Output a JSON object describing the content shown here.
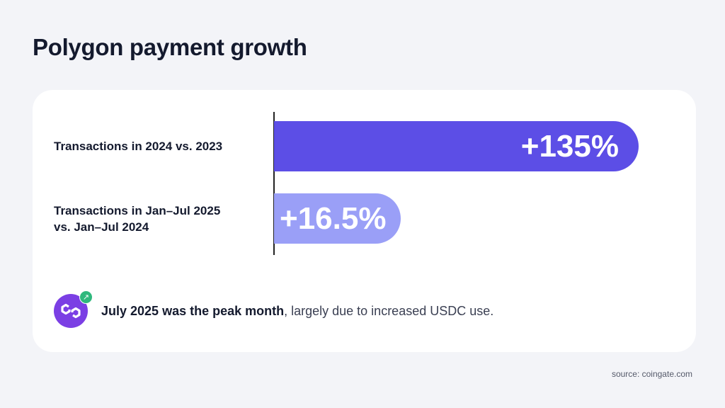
{
  "title": "Polygon payment growth",
  "chart_data": {
    "type": "bar",
    "orientation": "horizontal",
    "categories": [
      "Transactions in 2024 vs. 2023",
      "Transactions in Jan–Jul 2025 vs. Jan–Jul 2024"
    ],
    "category_lines": [
      [
        "Transactions in 2024 vs. 2023"
      ],
      [
        "Transactions in Jan–Jul 2025",
        "vs. Jan–Jul 2024"
      ]
    ],
    "values": [
      135,
      16.5
    ],
    "data_labels": [
      "+135%",
      "+16.5%"
    ],
    "colors": [
      "#5c4ee6",
      "#9a9ff7"
    ],
    "grid": false
  },
  "note": {
    "bold": "July 2025 was the peak month",
    "rest": ", largely due to increased USDC use.",
    "icon": "polygon-logo-icon",
    "badge_icon": "arrow-up-right-icon",
    "badge_color": "#2fb87d"
  },
  "source": "source: coingate.com"
}
